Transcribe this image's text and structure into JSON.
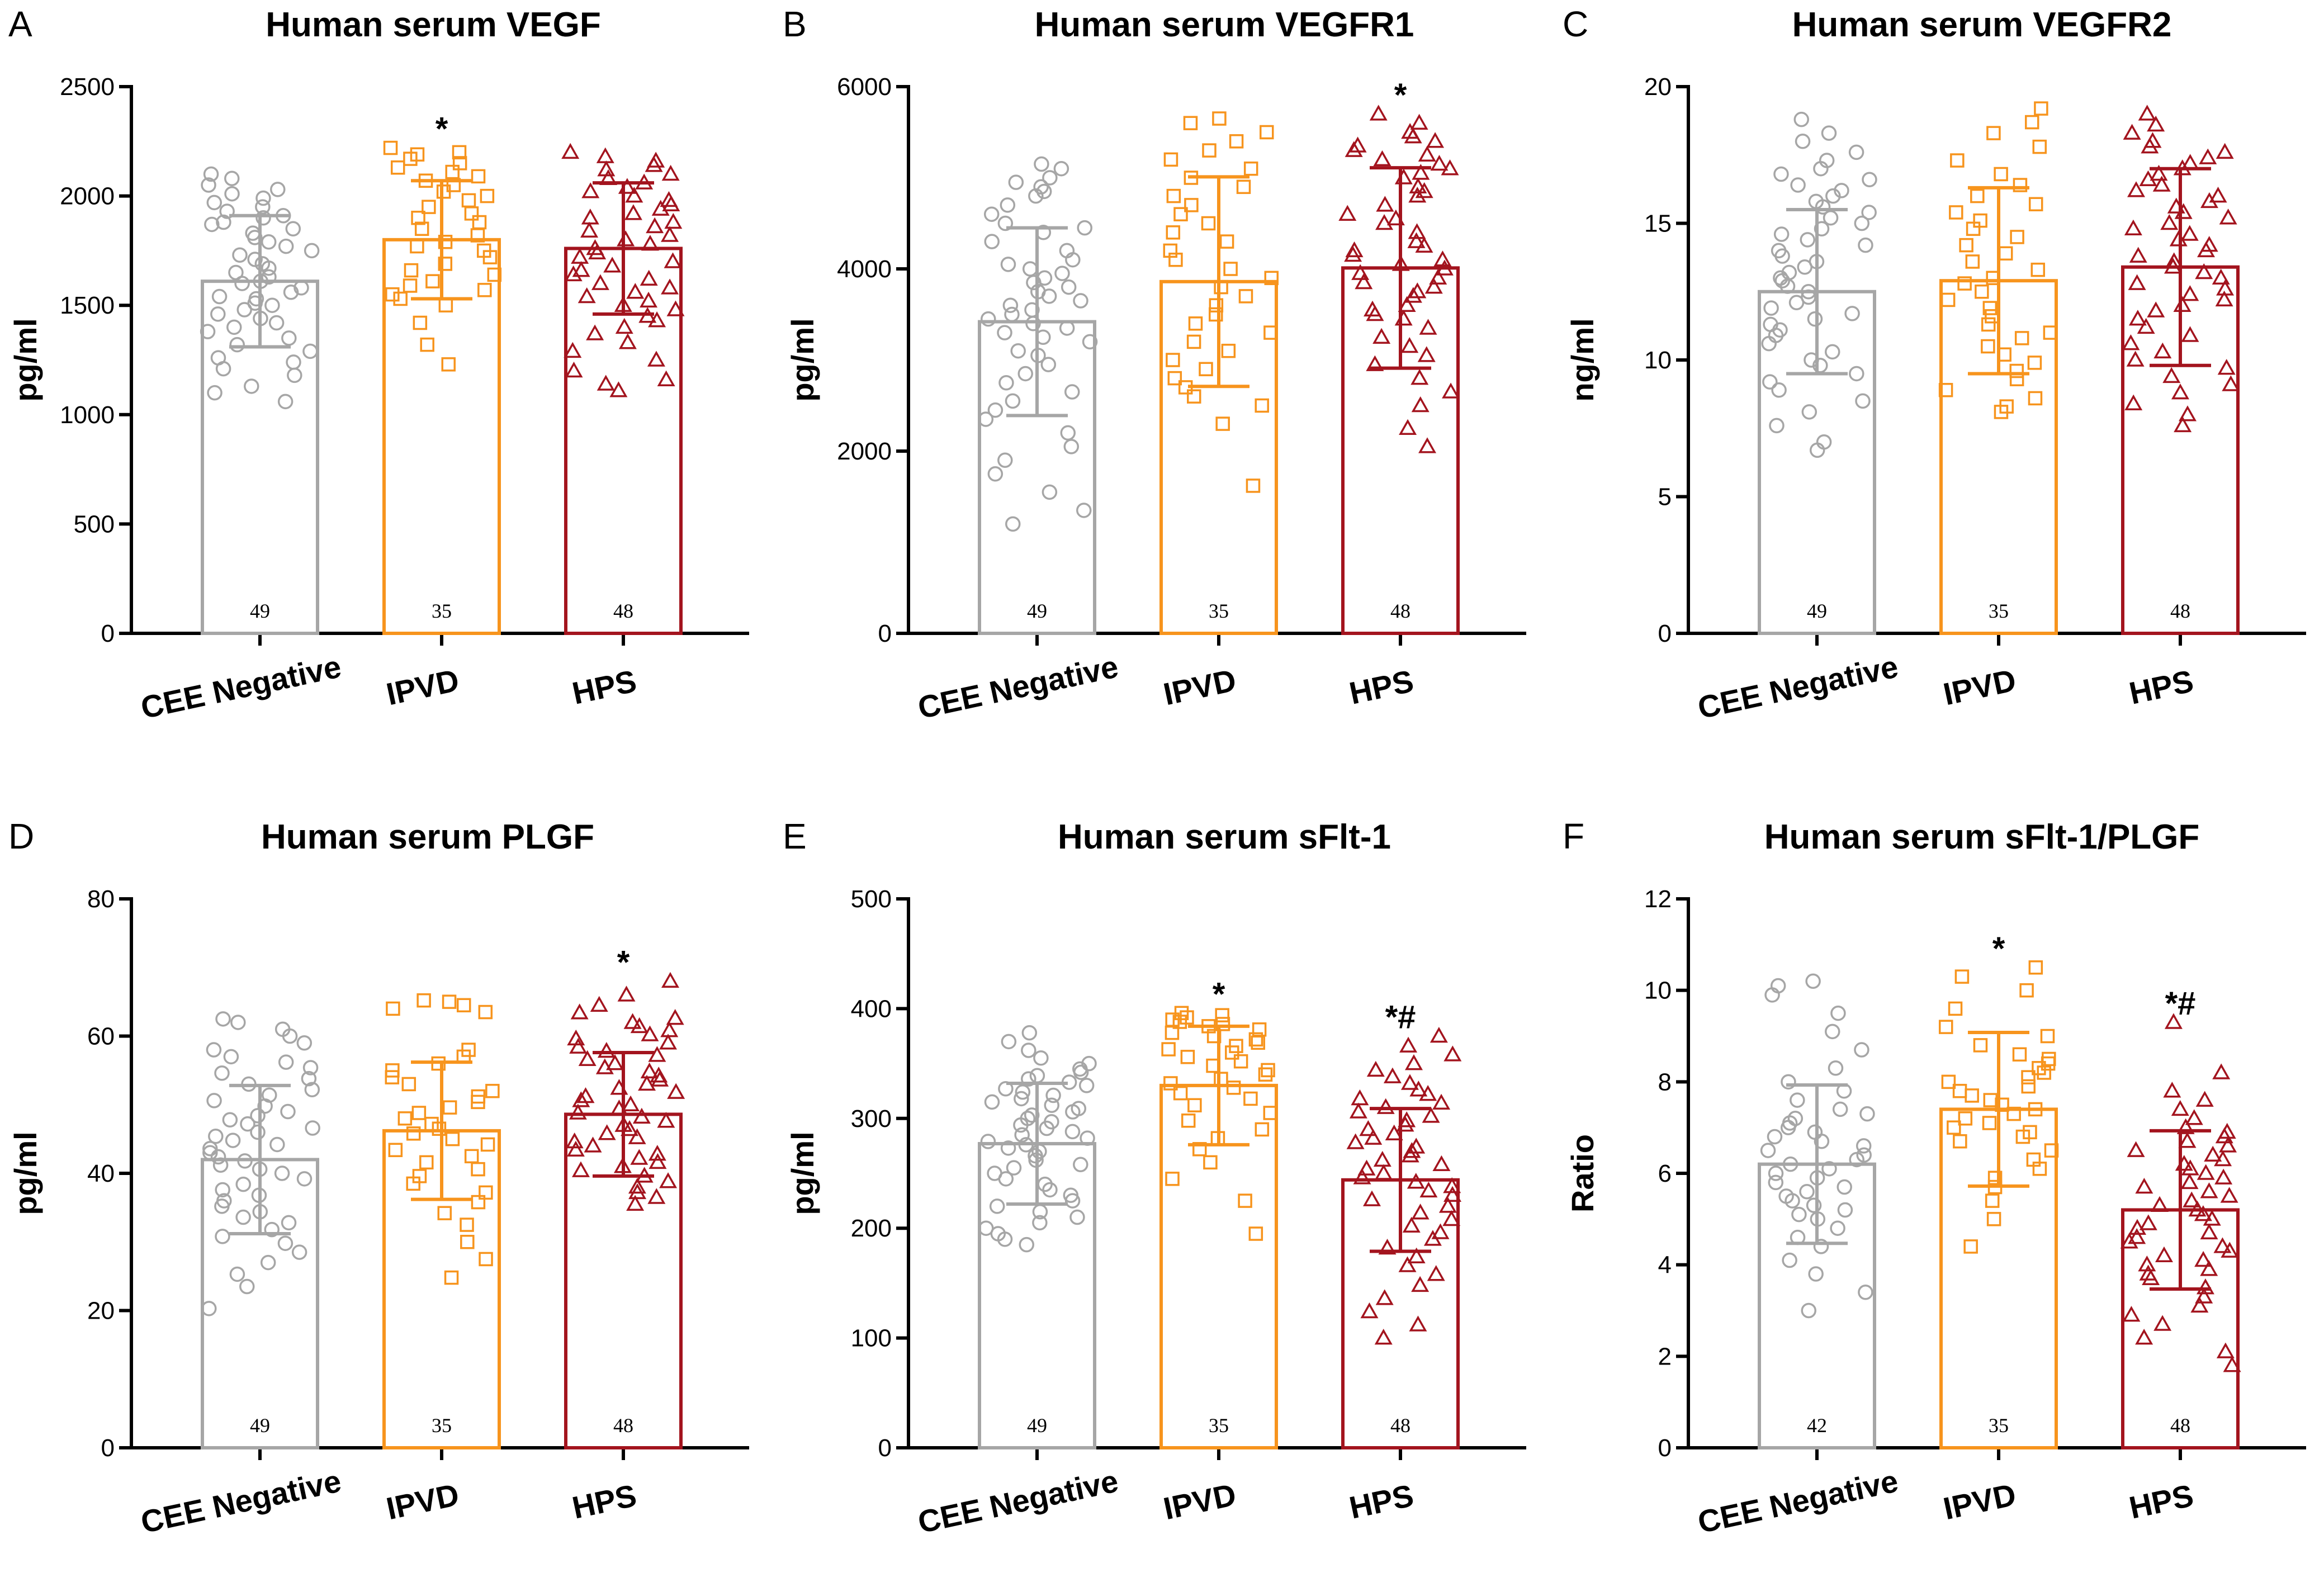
{
  "colors": {
    "group1": "#a6a6a6",
    "group2": "#f7941d",
    "group3": "#a3141e"
  },
  "chart_data": [
    {
      "panel": "A",
      "type": "bar",
      "title": "Human serum VEGF",
      "ylabel": "pg/ml",
      "ylim": [
        0,
        2500
      ],
      "yticks": [
        0,
        500,
        1000,
        1500,
        2000,
        2500
      ],
      "categories": [
        "CEE Negative",
        "IPVD",
        "HPS"
      ],
      "values": [
        1610,
        1800,
        1760
      ],
      "sd": [
        300,
        270,
        300
      ],
      "n": [
        "49",
        "35",
        "48"
      ],
      "annotations": [
        "",
        "*",
        ""
      ],
      "points": [
        [
          1060,
          1100,
          1130,
          1180,
          1210,
          1240,
          1260,
          1290,
          1320,
          1350,
          1380,
          1400,
          1420,
          1440,
          1460,
          1480,
          1500,
          1510,
          1530,
          1540,
          1560,
          1580,
          1600,
          1610,
          1630,
          1650,
          1670,
          1690,
          1710,
          1730,
          1750,
          1770,
          1790,
          1810,
          1830,
          1850,
          1870,
          1880,
          1900,
          1910,
          1930,
          1950,
          1970,
          1990,
          2010,
          2030,
          2050,
          2080,
          2100
        ],
        [
          1230,
          1320,
          1420,
          1500,
          1530,
          1550,
          1570,
          1590,
          1610,
          1640,
          1660,
          1690,
          1720,
          1750,
          1770,
          1790,
          1820,
          1850,
          1880,
          1900,
          1920,
          1950,
          1980,
          2000,
          2020,
          2050,
          2070,
          2090,
          2110,
          2130,
          2150,
          2170,
          2190,
          2200,
          2220
        ],
        [
          1110,
          1140,
          1160,
          1200,
          1250,
          1290,
          1330,
          1370,
          1400,
          1430,
          1450,
          1480,
          1500,
          1520,
          1540,
          1560,
          1580,
          1600,
          1620,
          1640,
          1660,
          1680,
          1700,
          1720,
          1740,
          1760,
          1780,
          1800,
          1820,
          1840,
          1860,
          1880,
          1900,
          1920,
          1940,
          1960,
          1980,
          2000,
          2020,
          2040,
          2060,
          2080,
          2100,
          2120,
          2140,
          2160,
          2180,
          2200
        ]
      ]
    },
    {
      "panel": "B",
      "type": "bar",
      "title": "Human serum VEGFR1",
      "ylabel": "pg/ml",
      "ylim": [
        0,
        6000
      ],
      "yticks": [
        0,
        2000,
        4000,
        6000
      ],
      "categories": [
        "CEE Negative",
        "IPVD",
        "HPS"
      ],
      "values": [
        3420,
        3860,
        4010
      ],
      "sd": [
        1030,
        1150,
        1100
      ],
      "n": [
        "49",
        "35",
        "48"
      ],
      "annotations": [
        "",
        "",
        "*"
      ],
      "points": [
        [
          1200,
          1350,
          1550,
          1750,
          1900,
          2050,
          2200,
          2350,
          2450,
          2550,
          2650,
          2750,
          2850,
          2950,
          3050,
          3100,
          3200,
          3250,
          3300,
          3350,
          3400,
          3450,
          3500,
          3550,
          3600,
          3650,
          3700,
          3750,
          3800,
          3850,
          3900,
          3950,
          4000,
          4050,
          4100,
          4200,
          4300,
          4400,
          4450,
          4500,
          4600,
          4700,
          4800,
          4850,
          4900,
          4950,
          5000,
          5100,
          5150
        ],
        [
          1620,
          2300,
          2500,
          2600,
          2700,
          2800,
          2900,
          3000,
          3100,
          3200,
          3300,
          3400,
          3500,
          3600,
          3700,
          3800,
          3900,
          4000,
          4100,
          4200,
          4300,
          4400,
          4500,
          4600,
          4700,
          4800,
          4900,
          5000,
          5100,
          5200,
          5300,
          5400,
          5500,
          5600,
          5650
        ],
        [
          2050,
          2250,
          2500,
          2650,
          2800,
          2950,
          3050,
          3150,
          3250,
          3350,
          3450,
          3500,
          3550,
          3600,
          3700,
          3750,
          3800,
          3850,
          3900,
          3950,
          4000,
          4050,
          4100,
          4150,
          4200,
          4250,
          4300,
          4400,
          4500,
          4550,
          4600,
          4700,
          4800,
          4850,
          4900,
          5000,
          5050,
          5100,
          5150,
          5200,
          5250,
          5300,
          5350,
          5400,
          5450,
          5500,
          5600,
          5700
        ]
      ]
    },
    {
      "panel": "C",
      "type": "bar",
      "title": "Human serum VEGFR2",
      "ylabel": "ng/ml",
      "ylim": [
        0,
        20
      ],
      "yticks": [
        0,
        5,
        10,
        15,
        20
      ],
      "categories": [
        "CEE Negative",
        "IPVD",
        "HPS"
      ],
      "values": [
        12.5,
        12.9,
        13.4
      ],
      "sd": [
        3.0,
        3.4,
        3.6
      ],
      "n": [
        "49",
        "35",
        "48"
      ],
      "annotations": [
        "",
        "",
        ""
      ],
      "points": [
        [
          6.7,
          7.0,
          7.6,
          8.1,
          8.5,
          8.9,
          9.2,
          9.5,
          9.8,
          10.0,
          10.3,
          10.6,
          10.9,
          11.1,
          11.3,
          11.5,
          11.7,
          11.9,
          12.1,
          12.3,
          12.5,
          12.7,
          12.9,
          13.0,
          13.2,
          13.4,
          13.6,
          13.8,
          14.0,
          14.2,
          14.4,
          14.6,
          14.8,
          15.0,
          15.2,
          15.4,
          15.6,
          15.8,
          16.0,
          16.2,
          16.4,
          16.6,
          16.8,
          17.0,
          17.3,
          17.6,
          18.0,
          18.3,
          18.8
        ],
        [
          8.1,
          8.3,
          8.6,
          8.9,
          9.3,
          9.6,
          9.9,
          10.2,
          10.5,
          10.8,
          11.0,
          11.3,
          11.6,
          11.9,
          12.2,
          12.5,
          12.8,
          13.0,
          13.3,
          13.6,
          13.9,
          14.2,
          14.5,
          14.8,
          15.1,
          15.4,
          15.7,
          16.0,
          16.4,
          16.8,
          17.3,
          17.8,
          18.3,
          18.7,
          19.2
        ],
        [
          7.6,
          8.0,
          8.4,
          8.8,
          9.1,
          9.4,
          9.7,
          10.0,
          10.3,
          10.6,
          10.9,
          11.2,
          11.5,
          11.8,
          12.0,
          12.2,
          12.4,
          12.6,
          12.8,
          13.0,
          13.2,
          13.4,
          13.6,
          13.8,
          14.0,
          14.2,
          14.4,
          14.6,
          14.8,
          15.0,
          15.2,
          15.4,
          15.6,
          15.8,
          16.0,
          16.2,
          16.4,
          16.6,
          16.8,
          17.0,
          17.2,
          17.4,
          17.6,
          17.8,
          18.0,
          18.3,
          18.6,
          19.0
        ]
      ]
    },
    {
      "panel": "D",
      "type": "bar",
      "title": "Human serum PLGF",
      "ylabel": "pg/ml",
      "ylim": [
        0,
        80
      ],
      "yticks": [
        0,
        20,
        40,
        60,
        80
      ],
      "categories": [
        "CEE Negative",
        "IPVD",
        "HPS"
      ],
      "values": [
        42,
        46.2,
        48.6
      ],
      "sd": [
        10.8,
        10.0,
        9.0
      ],
      "n": [
        "49",
        "35",
        "48"
      ],
      "annotations": [
        "",
        "",
        "*"
      ],
      "points": [
        [
          20.3,
          23.5,
          25.3,
          27.0,
          28.5,
          29.8,
          30.8,
          31.8,
          32.8,
          33.6,
          34.4,
          35.2,
          36.0,
          36.8,
          37.6,
          38.4,
          39.2,
          40.0,
          40.6,
          41.2,
          41.8,
          42.4,
          43.0,
          43.6,
          44.2,
          44.8,
          45.4,
          46.0,
          46.6,
          47.2,
          47.8,
          48.4,
          49.0,
          49.8,
          50.6,
          51.4,
          52.2,
          53.0,
          53.8,
          54.6,
          55.4,
          56.2,
          57.0,
          58.0,
          59.0,
          60.0,
          61.0,
          62.0,
          62.5
        ],
        [
          24.8,
          27.5,
          30.0,
          32.5,
          34.2,
          35.8,
          37.2,
          38.5,
          39.6,
          40.6,
          41.6,
          42.5,
          43.4,
          44.2,
          45.0,
          45.8,
          46.5,
          47.2,
          48.0,
          48.8,
          49.6,
          50.4,
          51.2,
          52.0,
          53.0,
          54.0,
          55.0,
          56.0,
          57.0,
          58.0,
          63.5,
          64.0,
          64.5,
          65.0,
          65.2
        ],
        [
          35.5,
          36.5,
          37.2,
          38.0,
          38.8,
          39.6,
          40.4,
          41.0,
          41.6,
          42.2,
          42.8,
          43.4,
          44.0,
          44.6,
          45.2,
          45.8,
          46.4,
          47.0,
          47.6,
          48.2,
          48.8,
          49.4,
          50.0,
          50.6,
          51.2,
          51.8,
          52.4,
          53.0,
          53.6,
          54.2,
          54.8,
          55.4,
          56.0,
          56.6,
          57.2,
          57.8,
          58.4,
          59.0,
          59.6,
          60.2,
          60.8,
          61.4,
          62.0,
          62.6,
          63.4,
          64.5,
          66.0,
          68.0
        ]
      ]
    },
    {
      "panel": "E",
      "type": "bar",
      "title": "Human serum sFlt-1",
      "ylabel": "pg/ml",
      "ylim": [
        0,
        500
      ],
      "yticks": [
        0,
        100,
        200,
        300,
        400,
        500
      ],
      "categories": [
        "CEE Negative",
        "IPVD",
        "HPS"
      ],
      "values": [
        277,
        330,
        244
      ],
      "sd": [
        55,
        54,
        65
      ],
      "n": [
        "49",
        "35",
        "48"
      ],
      "annotations": [
        "",
        "*",
        "*#"
      ],
      "points": [
        [
          185,
          190,
          195,
          200,
          205,
          210,
          215,
          220,
          225,
          230,
          235,
          240,
          245,
          250,
          255,
          258,
          262,
          266,
          270,
          273,
          276,
          279,
          282,
          285,
          288,
          291,
          294,
          297,
          300,
          303,
          306,
          309,
          312,
          315,
          318,
          321,
          324,
          327,
          330,
          333,
          336,
          339,
          342,
          345,
          350,
          355,
          362,
          370,
          378
        ],
        [
          195,
          225,
          245,
          260,
          272,
          282,
          290,
          298,
          305,
          312,
          318,
          323,
          328,
          332,
          336,
          340,
          344,
          348,
          352,
          356,
          360,
          363,
          366,
          369,
          372,
          375,
          378,
          381,
          384,
          386,
          388,
          390,
          392,
          394,
          396
        ],
        [
          100,
          112,
          124,
          136,
          148,
          158,
          166,
          174,
          182,
          190,
          196,
          202,
          208,
          214,
          220,
          226,
          230,
          234,
          238,
          242,
          246,
          250,
          254,
          258,
          262,
          266,
          270,
          274,
          278,
          282,
          286,
          290,
          294,
          298,
          302,
          306,
          310,
          314,
          318,
          322,
          326,
          332,
          338,
          344,
          350,
          358,
          366,
          375
        ]
      ]
    },
    {
      "panel": "F",
      "type": "bar",
      "title": "Human serum sFlt-1/PLGF",
      "ylabel": "Ratio",
      "ylim": [
        0,
        12
      ],
      "yticks": [
        0,
        2,
        4,
        6,
        8,
        10,
        12
      ],
      "categories": [
        "CEE Negative",
        "IPVD",
        "HPS"
      ],
      "values": [
        6.2,
        7.4,
        5.2
      ],
      "sd": [
        1.73,
        1.68,
        1.73
      ],
      "n": [
        "42",
        "35",
        "48"
      ],
      "annotations": [
        "",
        "*",
        "*#"
      ],
      "points": [
        [
          3.0,
          3.4,
          3.8,
          4.1,
          4.4,
          4.6,
          4.8,
          5.0,
          5.1,
          5.2,
          5.3,
          5.4,
          5.5,
          5.6,
          5.7,
          5.8,
          5.9,
          6.0,
          6.1,
          6.2,
          6.3,
          6.4,
          6.5,
          6.6,
          6.7,
          6.8,
          6.9,
          7.0,
          7.1,
          7.2,
          7.3,
          7.4,
          7.6,
          7.8,
          8.0,
          8.3,
          8.7,
          9.1,
          9.5,
          9.9,
          10.1,
          10.2
        ],
        [
          4.4,
          5.0,
          5.4,
          5.7,
          5.9,
          6.1,
          6.3,
          6.5,
          6.7,
          6.8,
          6.9,
          7.0,
          7.1,
          7.2,
          7.3,
          7.4,
          7.5,
          7.6,
          7.7,
          7.8,
          7.9,
          8.0,
          8.1,
          8.2,
          8.3,
          8.4,
          8.5,
          8.6,
          8.8,
          9.0,
          9.2,
          9.6,
          10.0,
          10.3,
          10.5
        ],
        [
          1.8,
          2.1,
          2.4,
          2.7,
          2.9,
          3.1,
          3.3,
          3.5,
          3.7,
          3.8,
          3.9,
          4.0,
          4.1,
          4.2,
          4.3,
          4.4,
          4.5,
          4.6,
          4.7,
          4.8,
          4.9,
          5.0,
          5.1,
          5.2,
          5.3,
          5.4,
          5.5,
          5.6,
          5.7,
          5.8,
          5.9,
          6.0,
          6.1,
          6.2,
          6.3,
          6.4,
          6.5,
          6.6,
          6.7,
          6.8,
          6.9,
          7.0,
          7.2,
          7.4,
          7.6,
          7.8,
          8.2,
          9.3
        ]
      ]
    }
  ]
}
